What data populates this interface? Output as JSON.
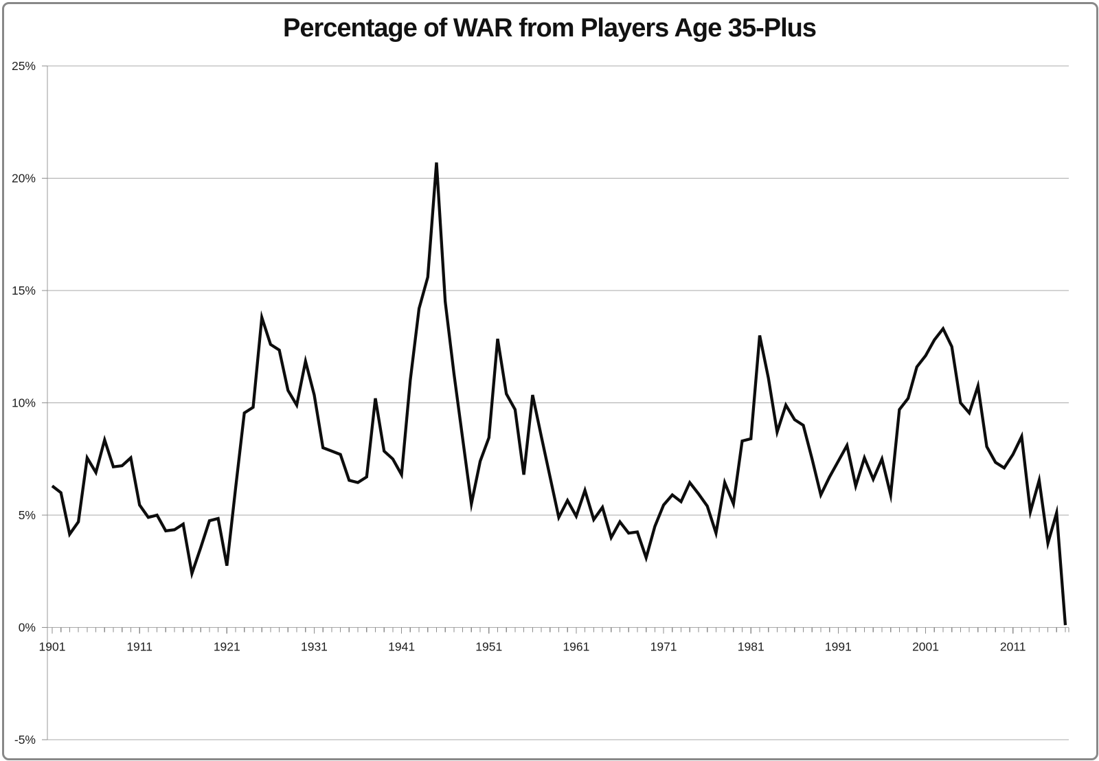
{
  "chart_data": {
    "type": "line",
    "title": "Percentage of WAR from Players Age 35-Plus",
    "xlabel": "",
    "ylabel": "",
    "x_start": 1901,
    "x_step": 1,
    "x_end": 2017,
    "ylim": [
      -5,
      25
    ],
    "grid": true,
    "legend": false,
    "y_tick_values": [
      25,
      20,
      15,
      10,
      5,
      0,
      -5
    ],
    "y_tick_labels": [
      "25%",
      "20%",
      "15%",
      "10%",
      "5%",
      "0%",
      "-5%"
    ],
    "x_tick_years": [
      1901,
      1911,
      1921,
      1931,
      1941,
      1951,
      1961,
      1971,
      1981,
      1991,
      2001,
      2011
    ],
    "x_tick_labels": [
      "1901",
      "1911",
      "1921",
      "1931",
      "1941",
      "1951",
      "1961",
      "1971",
      "1981",
      "1991",
      "2001",
      "2011"
    ],
    "series_name": "Percentage of WAR from players age 35-plus",
    "values": [
      6.3,
      6.0,
      4.15,
      4.7,
      7.55,
      6.9,
      8.35,
      7.15,
      7.2,
      7.55,
      5.45,
      4.9,
      5.0,
      4.3,
      4.35,
      4.6,
      2.4,
      3.55,
      4.75,
      4.85,
      2.75,
      6.2,
      9.55,
      9.8,
      13.8,
      12.6,
      12.35,
      10.55,
      9.9,
      11.85,
      10.35,
      8.0,
      7.85,
      7.7,
      6.55,
      6.45,
      6.7,
      10.2,
      7.85,
      7.5,
      6.8,
      11.0,
      14.2,
      15.6,
      20.7,
      14.5,
      11.3,
      8.4,
      5.5,
      7.4,
      8.45,
      12.85,
      10.4,
      9.7,
      6.8,
      10.35,
      8.5,
      6.7,
      4.9,
      5.65,
      4.95,
      6.1,
      4.8,
      5.35,
      4.0,
      4.7,
      4.2,
      4.25,
      3.1,
      4.5,
      5.45,
      5.9,
      5.6,
      6.45,
      5.95,
      5.4,
      4.2,
      6.45,
      5.5,
      8.3,
      8.4,
      13.0,
      11.1,
      8.7,
      9.9,
      9.25,
      9.0,
      7.5,
      5.9,
      6.7,
      7.4,
      8.1,
      6.3,
      7.55,
      6.6,
      7.5,
      5.9,
      9.7,
      10.2,
      11.6,
      12.1,
      12.8,
      13.3,
      12.5,
      10.0,
      9.55,
      10.75,
      8.05,
      7.35,
      7.1,
      7.7,
      8.5,
      5.15,
      6.55,
      3.75,
      5.1,
      0.1
    ],
    "colors": {
      "line": "#0d0d0d",
      "grid": "#a9a9a9",
      "axis": "#9a9a9a",
      "tick": "#8c8c8c",
      "text": "#1f1f1f",
      "frame_border": "#888888",
      "background": "#ffffff"
    }
  }
}
